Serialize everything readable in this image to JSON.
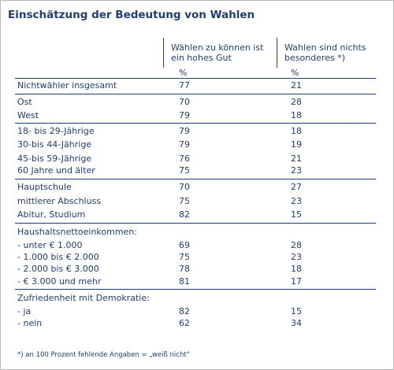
{
  "title": "Einschätzung der Bedeutung von Wahlen",
  "headers": {
    "col1": [
      "Wählen zu können ist",
      "ein hohes Gut"
    ],
    "col2": [
      "Wahlen sind nichts",
      "besonderes *)"
    ],
    "unit1": "%",
    "unit2": "%"
  },
  "rows": {
    "r0": {
      "label": "Nichtwähler insgesamt",
      "a": "77",
      "b": "21"
    },
    "r1": {
      "label": "Ost",
      "a": "70",
      "b": "28"
    },
    "r2": {
      "label": "West",
      "a": "79",
      "b": "18"
    },
    "r3": {
      "label": "18- bis 29-Jährige",
      "a": "79",
      "b": "18"
    },
    "r4": {
      "label": "30-bis 44-Jährige",
      "a": "79",
      "b": "19"
    },
    "r5": {
      "label": "45-bis 59-Jährige",
      "a": "76",
      "b": "21"
    },
    "r6": {
      "label": "60 Jahre und älter",
      "a": "75",
      "b": "23"
    },
    "r7": {
      "label": "Hauptschule",
      "a": "70",
      "b": "27"
    },
    "r8": {
      "label": "mittlerer Abschluss",
      "a": "75",
      "b": "23"
    },
    "r9": {
      "label": "Abitur, Studium",
      "a": "82",
      "b": "15"
    },
    "r10": {
      "label": "Haushaltsnettoeinkommen:",
      "a": "",
      "b": ""
    },
    "r11": {
      "label": "- unter € 1.000",
      "a": "69",
      "b": "28"
    },
    "r12": {
      "label": "- 1.000 bis € 2.000",
      "a": "75",
      "b": "23"
    },
    "r13": {
      "label": "- 2.000 bis € 3.000",
      "a": "78",
      "b": "18"
    },
    "r14": {
      "label": "- € 3.000 und mehr",
      "a": "81",
      "b": "17"
    },
    "r15": {
      "label": "Zufriedenheit mit Demokratie:",
      "a": "",
      "b": ""
    },
    "r16": {
      "label": "- ja",
      "a": "82",
      "b": "15"
    },
    "r17": {
      "label": "- nein",
      "a": "62",
      "b": "34"
    }
  },
  "footnote": "*)  an 100 Prozent fehlende Angaben = „weiß nicht“"
}
